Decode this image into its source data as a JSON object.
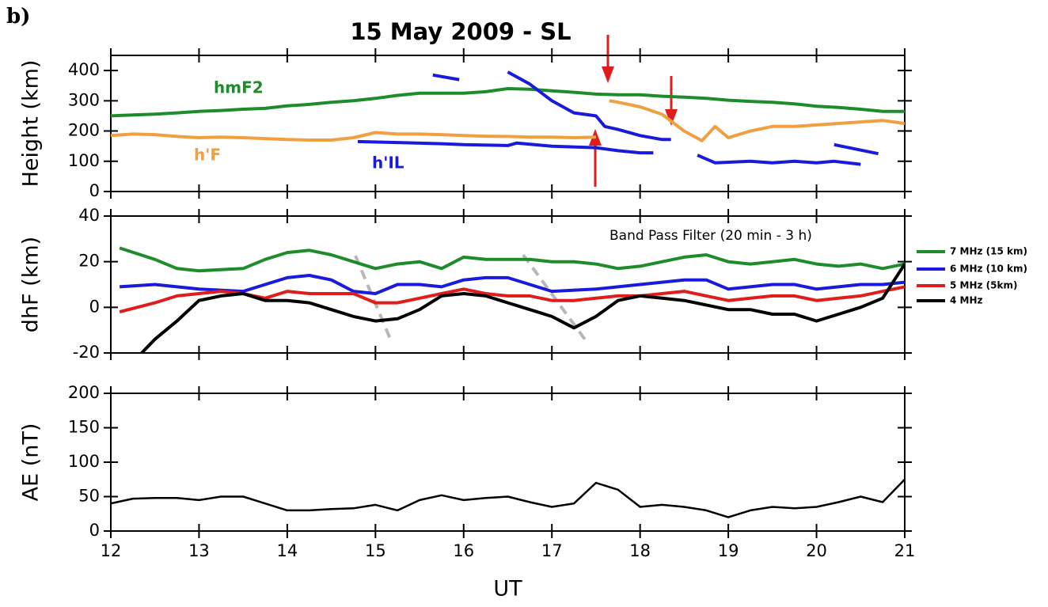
{
  "chart_data": [
    {
      "type": "line",
      "panel_label": "b)",
      "title": "15 May 2009 - SL",
      "ylabel": "Height (km)",
      "xlim": [
        12,
        21
      ],
      "xticks": [
        12,
        13,
        14,
        15,
        16,
        17,
        18,
        19,
        20,
        21
      ],
      "ylim": [
        0,
        450
      ],
      "yticks": [
        0,
        100,
        200,
        300,
        400
      ],
      "series": [
        {
          "name": "hmF2",
          "color": "#1f8c2b",
          "x": [
            12,
            12.25,
            12.5,
            12.75,
            13,
            13.25,
            13.5,
            13.75,
            14,
            14.25,
            14.5,
            14.75,
            15,
            15.25,
            15.5,
            15.75,
            16,
            16.25,
            16.5,
            16.75,
            17,
            17.25,
            17.5,
            17.75,
            18,
            18.25,
            18.5,
            18.75,
            19,
            19.25,
            19.5,
            19.75,
            20,
            20.25,
            20.5,
            20.75,
            21
          ],
          "values": [
            250,
            253,
            256,
            260,
            265,
            268,
            272,
            275,
            283,
            288,
            295,
            300,
            308,
            318,
            325,
            325,
            325,
            330,
            340,
            338,
            333,
            328,
            322,
            320,
            320,
            315,
            312,
            308,
            302,
            298,
            295,
            290,
            282,
            278,
            272,
            265,
            265
          ]
        },
        {
          "name": "h'F",
          "color": "#f0a040",
          "x": [
            12,
            12.25,
            12.5,
            12.75,
            13,
            13.25,
            13.5,
            13.75,
            14,
            14.25,
            14.5,
            14.75,
            15,
            15.25,
            15.5,
            15.75,
            16,
            16.25,
            16.5,
            16.75,
            17,
            17.25,
            17.5,
            17.6,
            17.65,
            17.75,
            18,
            18.25,
            18.5,
            18.7,
            18.85,
            19,
            19.25,
            19.5,
            19.75,
            20,
            20.25,
            20.5,
            20.75,
            21
          ],
          "values": [
            185,
            190,
            188,
            182,
            178,
            180,
            178,
            175,
            172,
            170,
            170,
            178,
            195,
            190,
            190,
            188,
            185,
            183,
            182,
            180,
            180,
            178,
            180,
            null,
            300,
            295,
            280,
            255,
            200,
            168,
            215,
            178,
            200,
            215,
            215,
            220,
            225,
            230,
            235,
            225
          ]
        },
        {
          "name": "h'IL",
          "color": "#1a1adc",
          "x": [
            15.65,
            15.95,
            15.96,
            16.5,
            16.75,
            17,
            17.25,
            17.5,
            17.6,
            17.75,
            18,
            18.25,
            18.35,
            18.36,
            14.8,
            15.25,
            15.75,
            16,
            16.5,
            16.6,
            17,
            17.5,
            17.75,
            18,
            18.15,
            18.16,
            18.65,
            18.85,
            19.25,
            19.5,
            19.75,
            20,
            20.2,
            20.5,
            20.51,
            20.2,
            20.7
          ],
          "values": [
            385,
            370,
            null,
            395,
            355,
            300,
            260,
            250,
            215,
            205,
            185,
            172,
            172,
            null,
            165,
            162,
            158,
            155,
            152,
            160,
            150,
            145,
            135,
            128,
            128,
            null,
            120,
            95,
            100,
            95,
            100,
            95,
            100,
            90,
            null,
            155,
            125
          ]
        }
      ]
    },
    {
      "type": "line",
      "ylabel": "dhF (km)",
      "annotation": "Band Pass Filter (20 min - 3 h)",
      "xlim": [
        12,
        21
      ],
      "xticks": [
        12,
        13,
        14,
        15,
        16,
        17,
        18,
        19,
        20,
        21
      ],
      "ylim": [
        -20,
        40
      ],
      "yticks": [
        -20,
        0,
        20,
        40
      ],
      "series": [
        {
          "name": "7 MHz (15 km)",
          "color": "#1f8c2b",
          "x": [
            12.1,
            12.5,
            12.75,
            13,
            13.5,
            13.75,
            14,
            14.25,
            14.5,
            14.75,
            15,
            15.25,
            15.5,
            15.75,
            16,
            16.25,
            16.5,
            16.75,
            17,
            17.25,
            17.5,
            17.75,
            18,
            18.25,
            18.5,
            18.75,
            19,
            19.25,
            19.5,
            19.75,
            20,
            20.25,
            20.5,
            20.75,
            21
          ],
          "values": [
            26,
            21,
            17,
            16,
            17,
            21,
            24,
            25,
            23,
            20,
            17,
            19,
            20,
            17,
            22,
            21,
            21,
            21,
            20,
            20,
            19,
            17,
            18,
            20,
            22,
            23,
            20,
            19,
            20,
            21,
            19,
            18,
            19,
            17,
            19
          ]
        },
        {
          "name": "6 MHz (10 km)",
          "color": "#1a1adc",
          "x": [
            12.1,
            12.5,
            13,
            13.5,
            13.75,
            14,
            14.25,
            14.5,
            14.75,
            15,
            15.25,
            15.5,
            15.75,
            16,
            16.25,
            16.5,
            16.75,
            17,
            17.5,
            17.75,
            18,
            18.25,
            18.5,
            18.75,
            19,
            19.25,
            19.5,
            19.75,
            20,
            20.25,
            20.5,
            20.75,
            21
          ],
          "values": [
            9,
            10,
            8,
            7,
            10,
            13,
            14,
            12,
            7,
            6,
            10,
            10,
            9,
            12,
            13,
            13,
            10,
            7,
            8,
            9,
            10,
            11,
            12,
            12,
            8,
            9,
            10,
            10,
            8,
            9,
            10,
            10,
            11
          ]
        },
        {
          "name": "5 MHz (5km)",
          "color": "#e01c1c",
          "x": [
            12.1,
            12.5,
            12.75,
            13,
            13.25,
            13.5,
            13.75,
            14,
            14.25,
            14.5,
            14.75,
            15,
            15.25,
            15.5,
            15.75,
            16,
            16.25,
            16.5,
            16.75,
            17,
            17.25,
            17.5,
            17.75,
            18,
            18.25,
            18.5,
            18.75,
            19,
            19.25,
            19.5,
            19.75,
            20,
            20.25,
            20.5,
            20.75,
            21
          ],
          "values": [
            -2,
            2,
            5,
            6,
            7,
            6,
            4,
            7,
            6,
            6,
            6,
            2,
            2,
            4,
            6,
            8,
            6,
            5,
            5,
            3,
            3,
            4,
            5,
            5,
            6,
            7,
            5,
            3,
            4,
            5,
            5,
            3,
            4,
            5,
            7,
            9
          ]
        },
        {
          "name": "4 MHz",
          "color": "#000000",
          "x": [
            12.35,
            12.5,
            12.75,
            13,
            13.25,
            13.5,
            13.75,
            14,
            14.25,
            14.5,
            14.75,
            15,
            15.25,
            15.5,
            15.75,
            16,
            16.25,
            16.5,
            16.75,
            17,
            17.25,
            17.5,
            17.75,
            18,
            18.25,
            18.5,
            18.75,
            19,
            19.25,
            19.5,
            19.75,
            20,
            20.25,
            20.5,
            20.75,
            21
          ],
          "values": [
            -20,
            -14,
            -6,
            3,
            5,
            6,
            3,
            3,
            2,
            -1,
            -4,
            -6,
            -5,
            -1,
            5,
            6,
            5,
            2,
            -1,
            -4,
            -9,
            -4,
            3,
            5,
            4,
            3,
            1,
            -1,
            -1,
            -3,
            -3,
            -6,
            -3,
            0,
            4,
            19
          ]
        }
      ]
    },
    {
      "type": "line",
      "ylabel": "AE (nT)",
      "xlabel": "UT",
      "xlim": [
        12,
        21
      ],
      "xticks": [
        12,
        13,
        14,
        15,
        16,
        17,
        18,
        19,
        20,
        21
      ],
      "ylim": [
        0,
        200
      ],
      "yticks": [
        0,
        50,
        100,
        150,
        200
      ],
      "series": [
        {
          "color": "#000000",
          "x": [
            12,
            12.25,
            12.5,
            12.75,
            13,
            13.25,
            13.5,
            13.75,
            14,
            14.25,
            14.5,
            14.75,
            15,
            15.25,
            15.5,
            15.75,
            16,
            16.25,
            16.5,
            16.75,
            17,
            17.25,
            17.5,
            17.75,
            18,
            18.25,
            18.5,
            18.75,
            19,
            19.25,
            19.5,
            19.75,
            20,
            20.25,
            20.5,
            20.75,
            21
          ],
          "values": [
            40,
            47,
            48,
            48,
            45,
            50,
            50,
            40,
            30,
            30,
            32,
            33,
            38,
            30,
            45,
            52,
            45,
            48,
            50,
            42,
            35,
            40,
            70,
            60,
            35,
            38,
            35,
            30,
            20,
            30,
            35,
            33,
            35,
            42,
            50,
            42,
            75
          ]
        }
      ]
    }
  ]
}
